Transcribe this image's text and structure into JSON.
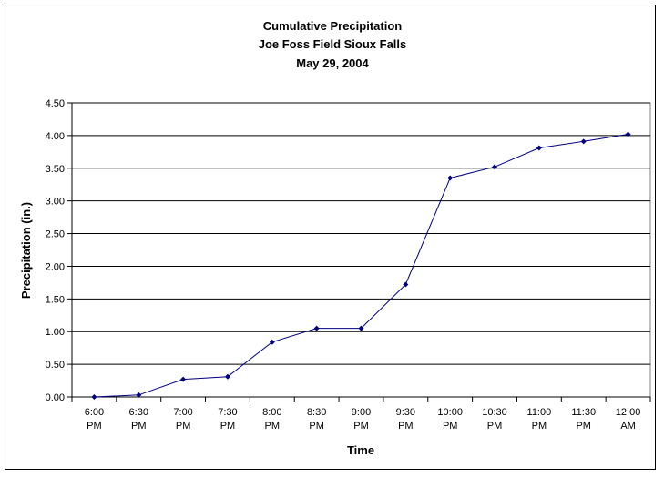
{
  "chart_data": {
    "type": "line",
    "title": [
      "Cumulative Precipitation",
      "Joe Foss Field Sioux Falls",
      "May 29, 2004"
    ],
    "xlabel": "Time",
    "ylabel": "Precipitation (in.)",
    "ylim": [
      0,
      4.5
    ],
    "y_ticks": [
      "0.00",
      "0.50",
      "1.00",
      "1.50",
      "2.00",
      "2.50",
      "3.00",
      "3.50",
      "4.00",
      "4.50"
    ],
    "categories": [
      [
        "6:00",
        "PM"
      ],
      [
        "6:30",
        "PM"
      ],
      [
        "7:00",
        "PM"
      ],
      [
        "7:30",
        "PM"
      ],
      [
        "8:00",
        "PM"
      ],
      [
        "8:30",
        "PM"
      ],
      [
        "9:00",
        "PM"
      ],
      [
        "9:30",
        "PM"
      ],
      [
        "10:00",
        "PM"
      ],
      [
        "10:30",
        "PM"
      ],
      [
        "11:00",
        "PM"
      ],
      [
        "11:30",
        "PM"
      ],
      [
        "12:00",
        "AM"
      ]
    ],
    "values": [
      0.0,
      0.03,
      0.27,
      0.31,
      0.84,
      1.05,
      1.05,
      1.72,
      3.35,
      3.52,
      3.81,
      3.91,
      4.02
    ],
    "grid": true,
    "legend": "none",
    "colors": {
      "line": "#000080",
      "marker": "#000080",
      "grid": "#000000",
      "plot_bg": "#ffffff"
    }
  }
}
